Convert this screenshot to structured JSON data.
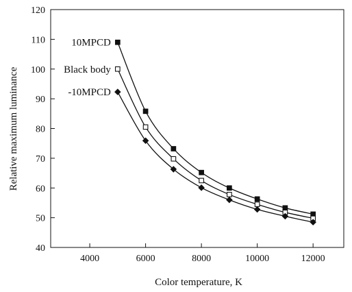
{
  "chart_data": {
    "type": "line",
    "title": "",
    "xlabel": "Color temperature, K",
    "ylabel": "Relative maximum luminance",
    "xlim": [
      2600,
      13100
    ],
    "ylim": [
      40,
      120
    ],
    "xticks": [
      4000,
      6000,
      8000,
      10000,
      12000
    ],
    "yticks": [
      40,
      50,
      60,
      70,
      80,
      90,
      100,
      110,
      120
    ],
    "grid": false,
    "x": [
      5000,
      6000,
      7000,
      8000,
      9000,
      10000,
      11000,
      12000
    ],
    "series": [
      {
        "name": "10MPCD",
        "marker": "filled-square",
        "color": "#111111",
        "values": [
          109,
          85.8,
          73.2,
          65.2,
          60,
          56.3,
          53.3,
          51.2
        ]
      },
      {
        "name": "Black body",
        "marker": "open-square",
        "color": "#111111",
        "values": [
          100,
          80.5,
          69.8,
          62.5,
          57.8,
          54.5,
          51.8,
          49.8
        ]
      },
      {
        "name": "-10MPCD",
        "marker": "filled-diamond",
        "color": "#111111",
        "values": [
          92.3,
          75.9,
          66.3,
          60.1,
          56,
          52.8,
          50.5,
          48.5
        ]
      }
    ]
  }
}
